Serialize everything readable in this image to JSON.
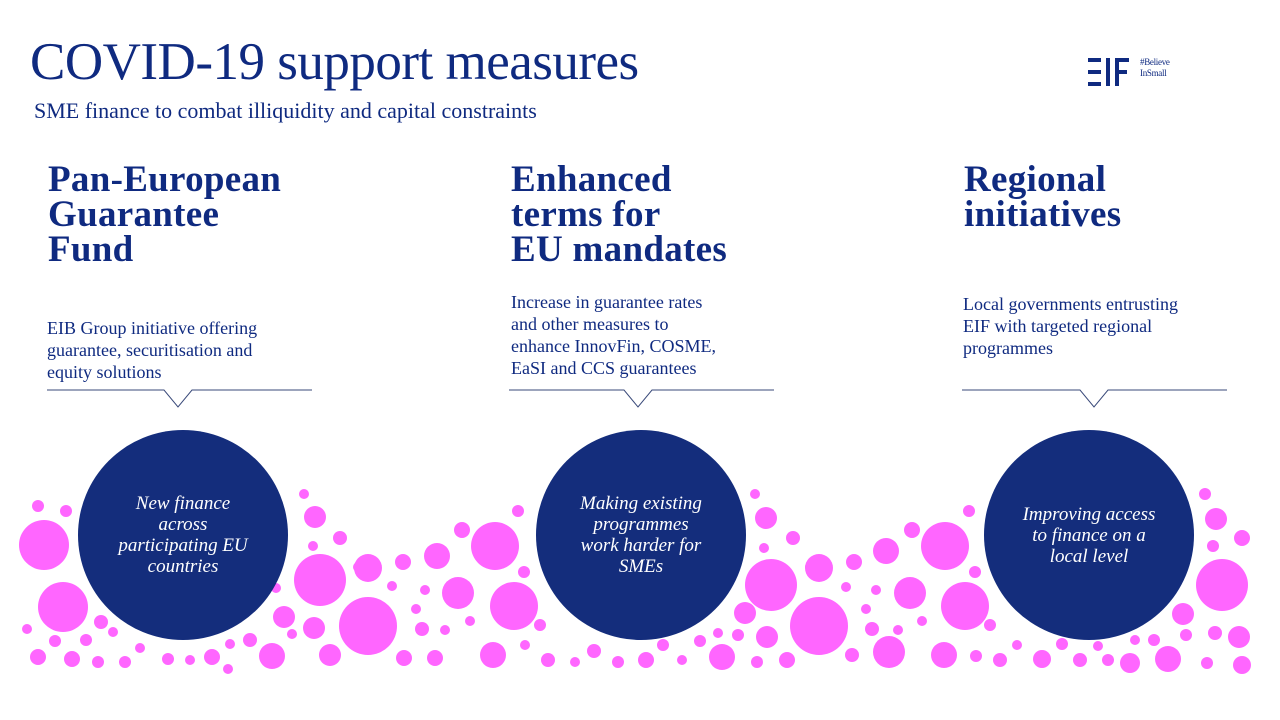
{
  "header": {
    "title": "COVID-19 support measures",
    "subtitle": "SME finance to combat illiquidity and capital constraints"
  },
  "logo": {
    "mark_text": "EIF",
    "tagline_line1": "#Believe",
    "tagline_line2": "InSmall",
    "color": "#0f2a80"
  },
  "pillars": [
    {
      "heading_lines": [
        "Pan-European",
        "Guarantee",
        "Fund"
      ],
      "description_lines": [
        "EIB Group initiative offering",
        "guarantee,  securitisation and",
        "equity solutions"
      ],
      "circle_lines": [
        "New finance",
        "across",
        "participating EU",
        "countries"
      ]
    },
    {
      "heading_lines": [
        "Enhanced",
        "terms for",
        "EU mandates"
      ],
      "description_lines": [
        "Increase  in guarantee rates",
        "and other measures to",
        "enhance InnovFin, COSME,",
        "EaSI and CCS guarantees"
      ],
      "circle_lines": [
        "Making existing",
        "programmes",
        "work harder for",
        "SMEs"
      ]
    },
    {
      "heading_lines": [
        "Regional",
        "initiatives"
      ],
      "description_lines": [
        "Local governments  entrusting",
        "EIF with targeted regional",
        "programmes"
      ],
      "circle_lines": [
        "Improving access",
        "to finance on a",
        "local level"
      ]
    }
  ],
  "colors": {
    "primary_navy": "#0f2a80",
    "circle_fill": "#142d7c",
    "bubble_pink": "#ff66ff",
    "callout_line": "#3a4a7a"
  },
  "icons": {
    "logo": "eif-logo-icon",
    "bubbles": "pink-bubbles-decoration-icon",
    "callout": "callout-pointer-icon"
  }
}
